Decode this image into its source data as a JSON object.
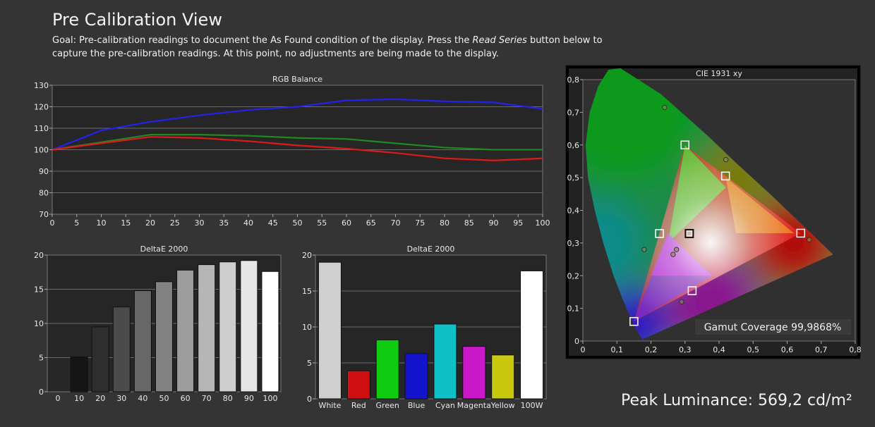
{
  "header": {
    "title": "Pre Calibration View",
    "goal_prefix": "Goal: Pre-calibration readings to document the As Found condition of the display. Press the ",
    "goal_emphasis": "Read Series",
    "goal_suffix": " button below to capture the pre-calibration readings. At this point, no adjustments are being made to the display."
  },
  "peak": {
    "label": "Peak Luminance:",
    "value": "569,2 cd/m²"
  },
  "chart_data": [
    {
      "id": "rgb",
      "type": "line",
      "title": "RGB Balance",
      "x": [
        0,
        10,
        20,
        30,
        40,
        50,
        60,
        70,
        80,
        90,
        100
      ],
      "xticks": [
        "0",
        "5",
        "10",
        "15",
        "20",
        "25",
        "30",
        "35",
        "40",
        "45",
        "50",
        "55",
        "60",
        "65",
        "70",
        "75",
        "80",
        "85",
        "90",
        "95",
        "100"
      ],
      "yticks": [
        "70",
        "80",
        "90",
        "100",
        "110",
        "120",
        "130"
      ],
      "xlim": [
        0,
        100
      ],
      "ylim": [
        70,
        130
      ],
      "series": [
        {
          "color": "#2222ee",
          "values": [
            100,
            109,
            113,
            116,
            118.5,
            120,
            123,
            123.5,
            122.5,
            122,
            119
          ]
        },
        {
          "color": "#1f8a1f",
          "values": [
            100,
            103.5,
            107,
            107,
            106.5,
            105.5,
            105,
            103,
            101,
            100,
            100
          ]
        },
        {
          "color": "#dd1a1a",
          "values": [
            100,
            103,
            106,
            105.5,
            104,
            102,
            100.5,
            98.5,
            96,
            95,
            96
          ]
        }
      ]
    },
    {
      "id": "gray",
      "type": "bar",
      "title": "DeltaE 2000",
      "categories": [
        "0",
        "10",
        "20",
        "30",
        "40",
        "50",
        "60",
        "70",
        "80",
        "90",
        "100"
      ],
      "values": [
        0,
        5.1,
        9.5,
        12.4,
        14.8,
        16.1,
        17.8,
        18.6,
        19.0,
        19.2,
        17.6
      ],
      "colors": [
        "#000000",
        "#151515",
        "#2e2e2e",
        "#4b4b4b",
        "#676767",
        "#828282",
        "#9d9d9d",
        "#b6b6b6",
        "#cecece",
        "#e6e6e6",
        "#ffffff"
      ],
      "yticks": [
        "0",
        "5",
        "10",
        "15",
        "20"
      ],
      "ylim": [
        0,
        20
      ]
    },
    {
      "id": "color",
      "type": "bar",
      "title": "DeltaE 2000",
      "categories": [
        "White",
        "Red",
        "Green",
        "Blue",
        "Cyan",
        "Magenta",
        "Yellow",
        "100W"
      ],
      "values": [
        19.0,
        3.9,
        8.2,
        6.3,
        10.4,
        7.3,
        6.1,
        17.8
      ],
      "colors": [
        "#cfcfcf",
        "#d01010",
        "#10cc10",
        "#1414cc",
        "#10c0c8",
        "#c818c8",
        "#c8c810",
        "#ffffff"
      ],
      "yticks": [
        "0",
        "5",
        "10",
        "15",
        "20"
      ],
      "ylim": [
        0,
        20
      ]
    },
    {
      "id": "cie",
      "type": "scatter",
      "title": "CIE 1931 xy",
      "xticks": [
        "0",
        "0,1",
        "0,2",
        "0,3",
        "0,4",
        "0,5",
        "0,6",
        "0,7",
        "0,8"
      ],
      "yticks": [
        "0",
        "0,1",
        "0,2",
        "0,3",
        "0,4",
        "0,5",
        "0,6",
        "0,7",
        "0,8"
      ],
      "xlim": [
        0,
        0.8
      ],
      "ylim": [
        0,
        0.8
      ],
      "targets": [
        [
          0.64,
          0.33
        ],
        [
          0.3,
          0.6
        ],
        [
          0.15,
          0.06
        ],
        [
          0.3127,
          0.329
        ],
        [
          0.225,
          0.329
        ],
        [
          0.321,
          0.154
        ],
        [
          0.419,
          0.505
        ]
      ],
      "measured": [
        [
          0.665,
          0.31
        ],
        [
          0.24,
          0.715
        ],
        [
          0.42,
          0.555
        ],
        [
          0.18,
          0.28
        ],
        [
          0.265,
          0.265
        ],
        [
          0.275,
          0.28
        ],
        [
          0.29,
          0.12
        ]
      ],
      "gamut_coverage_label": "Gamut Coverage 99,9868%"
    }
  ]
}
